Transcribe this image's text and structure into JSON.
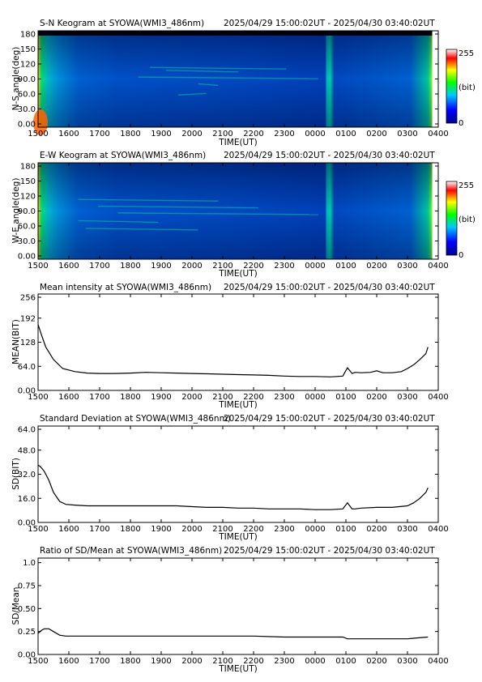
{
  "x_axis": {
    "ticks": [
      "1500",
      "1600",
      "1700",
      "1800",
      "1900",
      "2000",
      "2100",
      "2200",
      "2300",
      "0000",
      "0100",
      "0200",
      "0300",
      "0400"
    ],
    "label": "TIME(UT)"
  },
  "colorbar": {
    "max": "255",
    "unit": "(bit)",
    "min": "0"
  },
  "chart_data": [
    {
      "type": "heatmap",
      "id": "sn_keogram",
      "title": "S-N Keogram at SYOWA(WMI3_486nm)",
      "subtitle": "2025/04/29 15:00:02UT - 2025/04/30 03:40:02UT",
      "ylabel": "N-S angle(deg)",
      "xlabel": "TIME(UT)",
      "y_ticks": [
        "180",
        "150",
        "120",
        "90.0",
        "60.0",
        "30.0",
        "0.00"
      ],
      "colorbar": [
        "0",
        "255"
      ],
      "colormap": [
        "#00008c",
        "#0000ff",
        "#00c8ff",
        "#00ff00",
        "#ffff00",
        "#ff0000",
        "#ffffff"
      ]
    },
    {
      "type": "heatmap",
      "id": "ew_keogram",
      "title": "E-W Keogram at SYOWA(WMI3_486nm)",
      "subtitle": "2025/04/29 15:00:02UT - 2025/04/30 03:40:02UT",
      "ylabel": "W-E angle(deg)",
      "xlabel": "TIME(UT)",
      "y_ticks": [
        "180",
        "150",
        "120",
        "90.0",
        "60.0",
        "30.0",
        "0.00"
      ],
      "colorbar": [
        "0",
        "255"
      ],
      "colormap": [
        "#00008c",
        "#0000ff",
        "#00c8ff",
        "#00ff00",
        "#ffff00",
        "#ff0000",
        "#ffffff"
      ]
    },
    {
      "type": "line",
      "id": "mean_intensity",
      "title": "Mean intensity at SYOWA(WMI3_486nm)",
      "subtitle": "2025/04/29 15:00:02UT - 2025/04/30 03:40:02UT",
      "ylabel": "MEAN(BIT)",
      "xlabel": "TIME(UT)",
      "ylim": [
        0,
        256
      ],
      "y_ticks": [
        "256",
        "192",
        "128",
        "64.0",
        "0.00"
      ],
      "x": [
        0,
        0.1,
        0.25,
        0.5,
        0.8,
        1.2,
        1.6,
        2.0,
        2.5,
        3.0,
        3.5,
        4.0,
        4.5,
        5.0,
        5.5,
        6.0,
        6.5,
        7.0,
        7.5,
        8.0,
        8.5,
        9.0,
        9.5,
        9.9,
        10.05,
        10.2,
        10.3,
        10.5,
        10.8,
        11.0,
        11.2,
        11.5,
        11.8,
        12.0,
        12.2,
        12.4,
        12.6,
        12.667
      ],
      "values": [
        175,
        150,
        115,
        82,
        58,
        50,
        46,
        45,
        45,
        46,
        48,
        47,
        46,
        45,
        44,
        43,
        42,
        41,
        40,
        38,
        37,
        37,
        36,
        38,
        60,
        45,
        48,
        47,
        48,
        52,
        47,
        47,
        50,
        58,
        68,
        82,
        98,
        115
      ]
    },
    {
      "type": "line",
      "id": "std_dev",
      "title": "Standard Deviation at SYOWA(WMI3_486nm)",
      "subtitle": "2025/04/29 15:00:02UT - 2025/04/30 03:40:02UT",
      "ylabel": "SD(BIT)",
      "xlabel": "TIME(UT)",
      "ylim": [
        0,
        64
      ],
      "y_ticks": [
        "64.0",
        "48.0",
        "32.0",
        "16.0",
        "0.00"
      ],
      "x": [
        0,
        0.08,
        0.2,
        0.35,
        0.5,
        0.7,
        0.9,
        1.2,
        1.6,
        2.0,
        2.5,
        3.0,
        3.5,
        4.0,
        4.5,
        5.0,
        5.5,
        6.0,
        6.5,
        7.0,
        7.5,
        8.0,
        8.5,
        9.0,
        9.5,
        9.9,
        10.05,
        10.2,
        10.3,
        10.5,
        11.0,
        11.5,
        12.0,
        12.2,
        12.4,
        12.6,
        12.667
      ],
      "values": [
        38,
        37,
        34,
        28,
        20,
        14,
        12,
        11.5,
        11,
        11,
        11,
        11,
        11,
        11,
        11,
        10.5,
        10,
        10,
        9.5,
        9.5,
        9,
        9,
        9,
        8.5,
        8.5,
        9,
        13,
        9,
        9,
        9.5,
        10,
        10,
        11,
        13,
        16,
        20,
        23
      ]
    },
    {
      "type": "line",
      "id": "sd_mean_ratio",
      "title": "Ratio of SD/Mean at SYOWA(WMI3_486nm)",
      "subtitle": "2025/04/29 15:00:02UT - 2025/04/30 03:40:02UT",
      "ylabel": "SD/Mean",
      "xlabel": "TIME(UT)",
      "ylim": [
        0,
        1.05
      ],
      "y_ticks": [
        "1.0",
        "0.75",
        "0.50",
        "0.25",
        "0.00"
      ],
      "x": [
        0,
        0.1,
        0.2,
        0.35,
        0.5,
        0.7,
        0.9,
        1.2,
        1.6,
        2.0,
        3.0,
        4.0,
        5.0,
        6.0,
        7.0,
        8.0,
        9.0,
        9.9,
        10.05,
        10.3,
        11.0,
        11.5,
        12.0,
        12.3,
        12.667
      ],
      "values": [
        0.23,
        0.26,
        0.28,
        0.28,
        0.25,
        0.21,
        0.2,
        0.2,
        0.2,
        0.2,
        0.2,
        0.2,
        0.2,
        0.2,
        0.2,
        0.19,
        0.19,
        0.19,
        0.17,
        0.17,
        0.17,
        0.17,
        0.17,
        0.18,
        0.19
      ]
    }
  ]
}
